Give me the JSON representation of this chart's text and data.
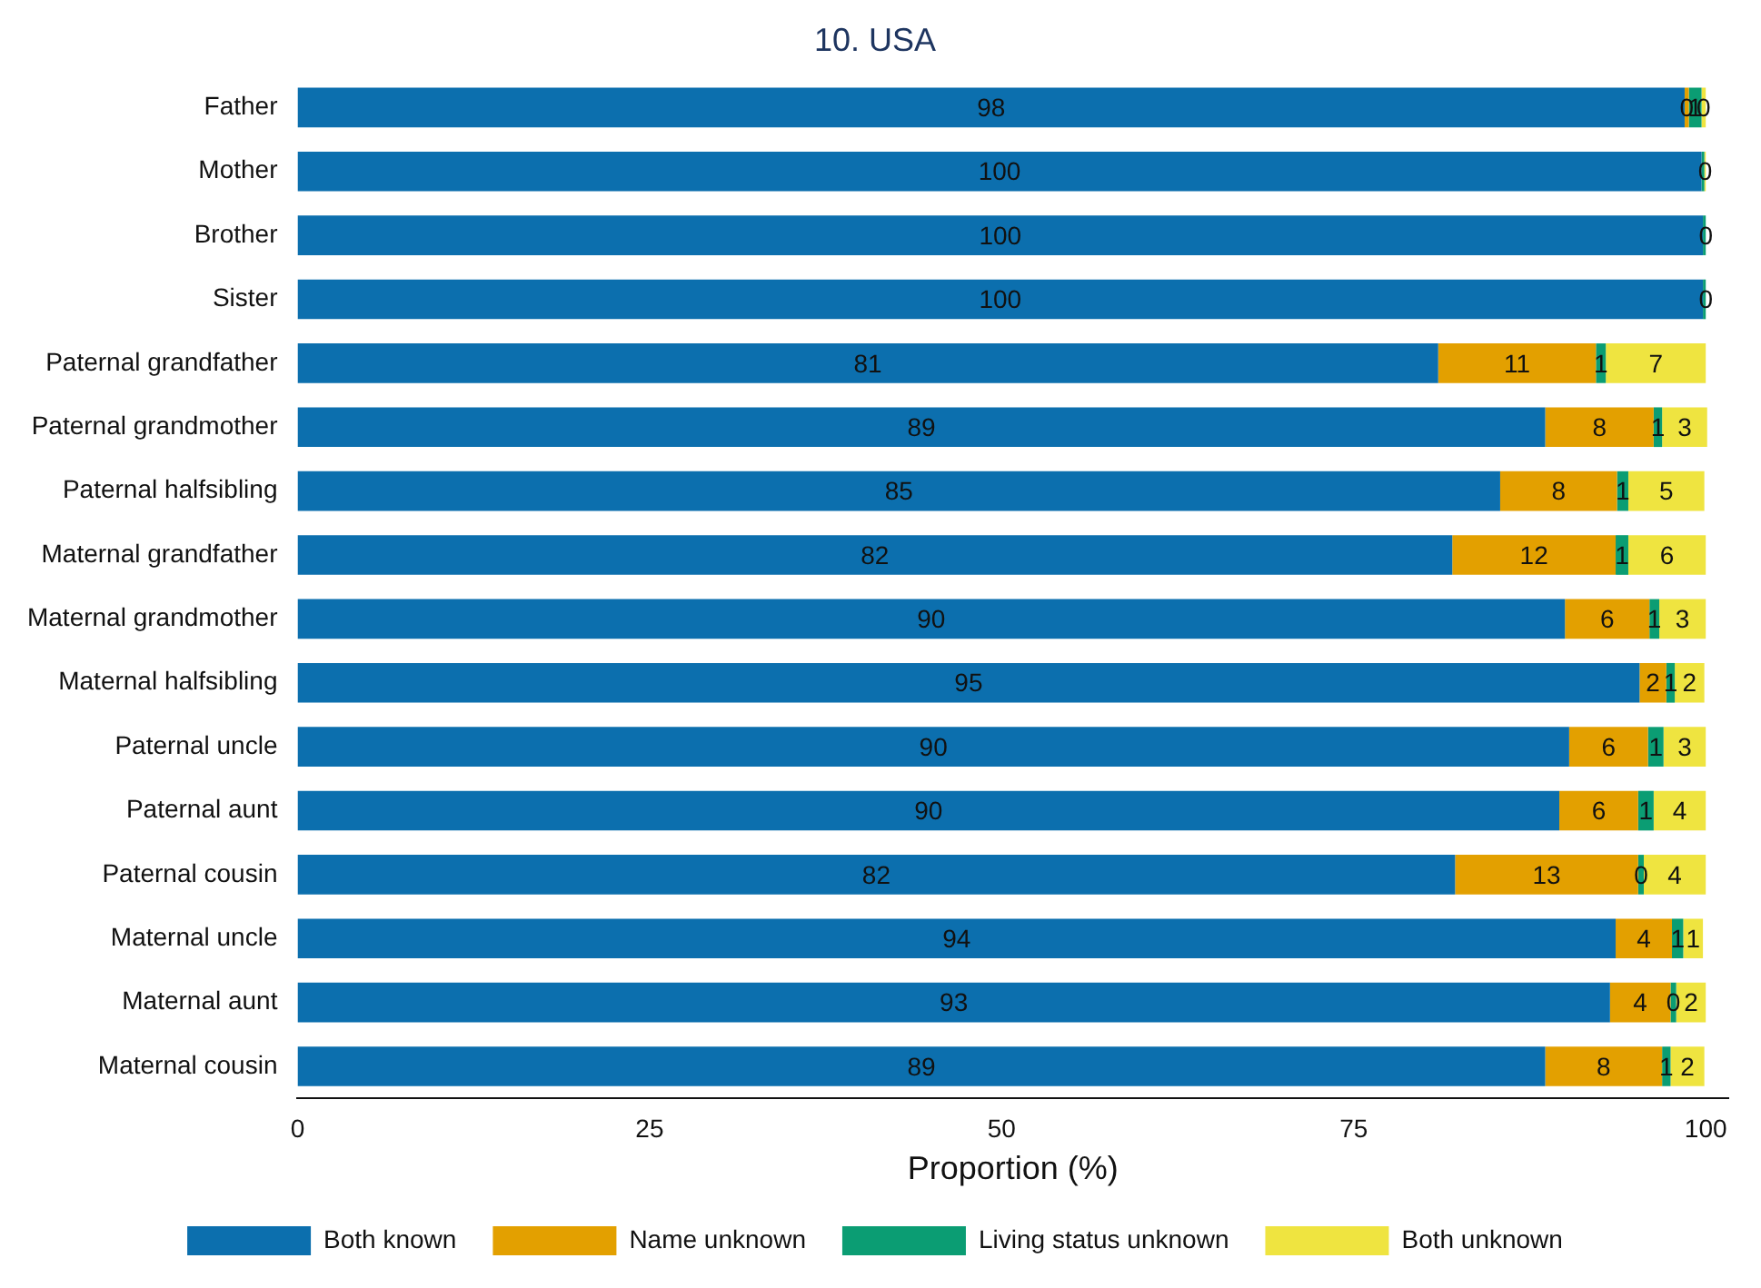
{
  "chart_data": {
    "type": "bar",
    "orientation": "horizontal",
    "stacked": true,
    "title": "10. USA",
    "xlabel": "Proportion (%)",
    "categories": [
      "Father",
      "Mother",
      "Brother",
      "Sister",
      "Paternal grandfather",
      "Paternal grandmother",
      "Paternal halfsibling",
      "Maternal grandfather",
      "Maternal grandmother",
      "Maternal halfsibling",
      "Paternal uncle",
      "Paternal aunt",
      "Paternal cousin",
      "Maternal uncle",
      "Maternal aunt",
      "Maternal cousin"
    ],
    "series": [
      {
        "name": "Both known",
        "color": "#0c6fae",
        "values": [
          98.5,
          99.7,
          99.8,
          99.8,
          81.0,
          88.6,
          85.4,
          82.0,
          90.0,
          95.3,
          90.3,
          89.6,
          82.2,
          93.6,
          93.2,
          88.6
        ],
        "value_labels": [
          "98",
          "100",
          "100",
          "100",
          "81",
          "89",
          "85",
          "82",
          "90",
          "95",
          "90",
          "90",
          "82",
          "94",
          "93",
          "89"
        ]
      },
      {
        "name": "Name unknown",
        "color": "#e3a000",
        "values": [
          0.3,
          0.0,
          0.0,
          0.0,
          11.2,
          7.7,
          8.3,
          11.6,
          6.0,
          1.9,
          5.6,
          5.6,
          13.0,
          4.0,
          4.3,
          8.3
        ],
        "value_labels": [
          "0",
          null,
          null,
          null,
          "11",
          "8",
          "8",
          "12",
          "6",
          "2",
          "6",
          "6",
          "13",
          "4",
          "4",
          "8"
        ]
      },
      {
        "name": "Living status unknown",
        "color": "#0b9d73",
        "values": [
          0.9,
          0.2,
          0.2,
          0.2,
          0.7,
          0.6,
          0.8,
          0.9,
          0.7,
          0.6,
          1.1,
          1.1,
          0.4,
          0.8,
          0.4,
          0.6
        ],
        "value_labels": [
          "1",
          null,
          null,
          null,
          "1",
          "1",
          "1",
          "1",
          "1",
          "1",
          "1",
          "1",
          "0",
          "1",
          "0",
          "1"
        ]
      },
      {
        "name": "Both unknown",
        "color": "#efe440",
        "values": [
          0.3,
          0.1,
          0.0,
          0.0,
          7.1,
          3.2,
          5.4,
          5.5,
          3.3,
          2.1,
          3.0,
          3.7,
          4.4,
          1.4,
          2.1,
          2.4
        ],
        "value_labels": [
          "0",
          "0",
          "0",
          "0",
          "7",
          "3",
          "5",
          "6",
          "3",
          "2",
          "3",
          "4",
          "4",
          "1",
          "2",
          "2"
        ]
      }
    ],
    "xlim": [
      0,
      101.6
    ],
    "xticks": [
      0,
      25,
      50,
      75,
      100
    ],
    "grid": false,
    "legend": "bottom"
  }
}
